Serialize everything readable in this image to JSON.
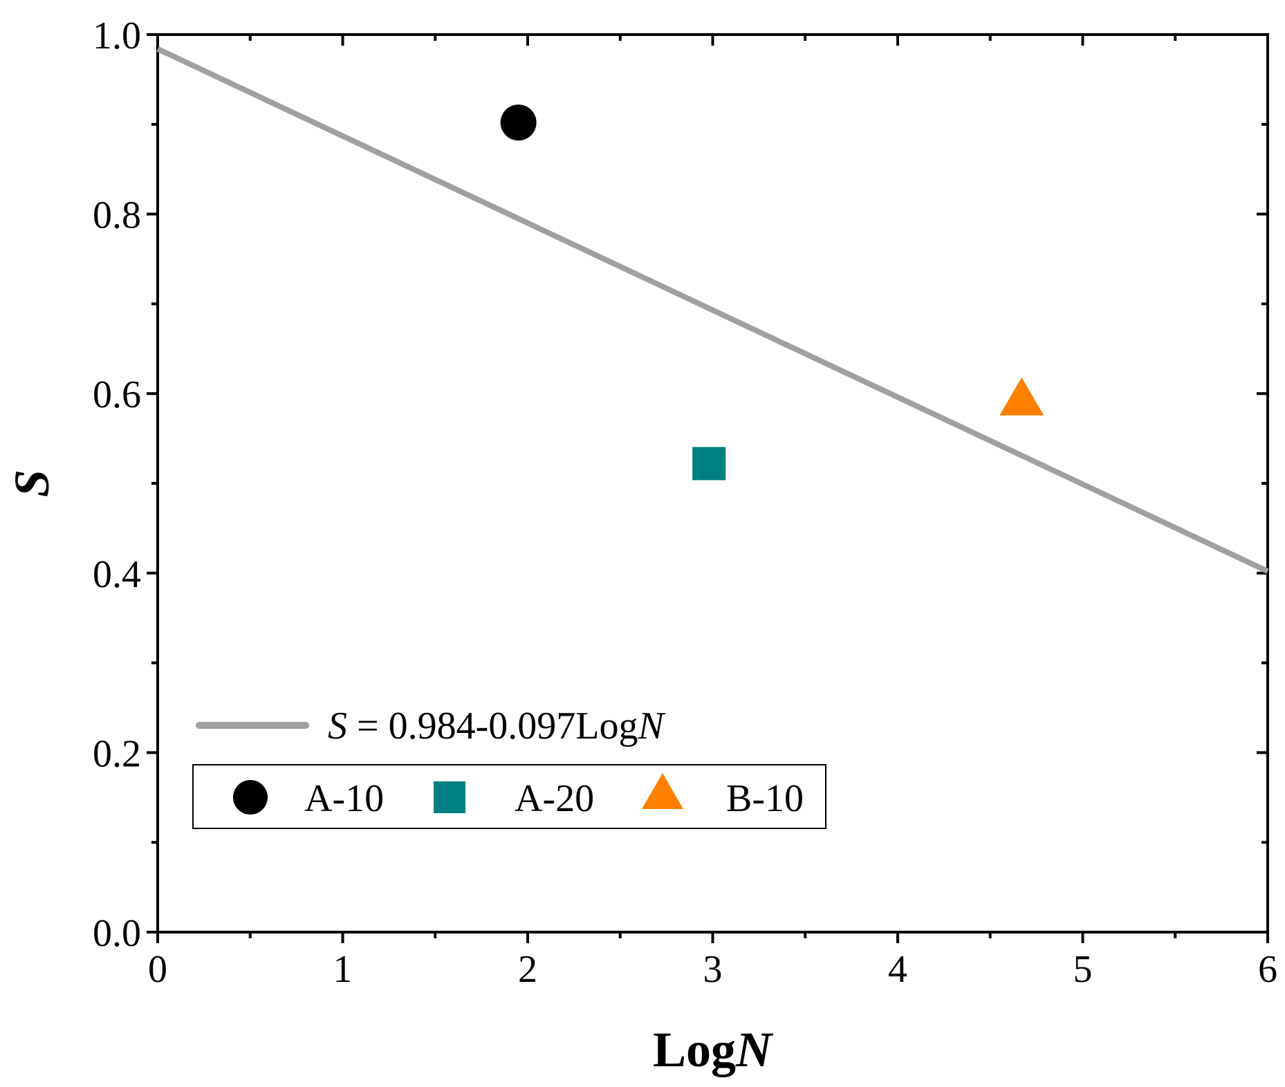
{
  "chart_data": {
    "type": "scatter",
    "title": "",
    "xlabel": "Log",
    "xlabel_italic": "N",
    "ylabel": "S",
    "xlim": [
      0,
      6
    ],
    "ylim": [
      0.0,
      1.0
    ],
    "x_major_ticks": [
      0,
      1,
      2,
      3,
      4,
      5,
      6
    ],
    "x_tick_labels": [
      "0",
      "1",
      "2",
      "3",
      "4",
      "5",
      "6"
    ],
    "x_minor_step": 0.5,
    "y_major_ticks": [
      0.0,
      0.2,
      0.4,
      0.6,
      0.8,
      1.0
    ],
    "y_tick_labels": [
      "0.0",
      "0.2",
      "0.4",
      "0.6",
      "0.8",
      "1.0"
    ],
    "y_minor_step": 0.1,
    "grid": false,
    "fit_line": {
      "intercept": 0.984,
      "slope": -0.097,
      "x_range": [
        0,
        6
      ],
      "color": "#a0a0a0",
      "label_var": "S",
      "label_eq": " = 0.984-0.097Log",
      "label_n": "N"
    },
    "series": [
      {
        "name": "A-10",
        "marker": "circle",
        "color": "#000000",
        "x": 1.95,
        "y": 0.902
      },
      {
        "name": "A-20",
        "marker": "square",
        "color": "#008080",
        "x": 2.98,
        "y": 0.522
      },
      {
        "name": "B-10",
        "marker": "triangle",
        "color": "#ff8000",
        "x": 4.67,
        "y": 0.595
      }
    ],
    "legend_position": "bottom-left"
  }
}
